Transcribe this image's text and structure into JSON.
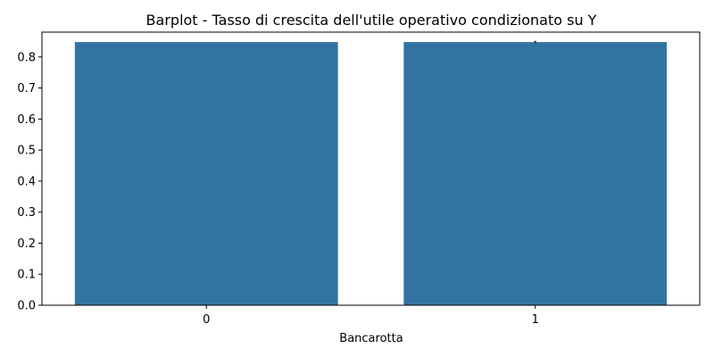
{
  "chart_data": {
    "type": "bar",
    "title": "Barplot - Tasso di crescita dell'utile operativo condizionato su Y",
    "xlabel": "Bancarotta",
    "ylabel": "",
    "categories": [
      "0",
      "1"
    ],
    "values": [
      0.848,
      0.848
    ],
    "error_bars": [
      0,
      0.004
    ],
    "ylim": [
      0,
      0.88
    ],
    "yticks": [
      "0.0",
      "0.1",
      "0.2",
      "0.3",
      "0.4",
      "0.5",
      "0.6",
      "0.7",
      "0.8"
    ],
    "grid": false,
    "legend": "none",
    "bar_color": "#3274a1",
    "error_color": "#424242"
  }
}
